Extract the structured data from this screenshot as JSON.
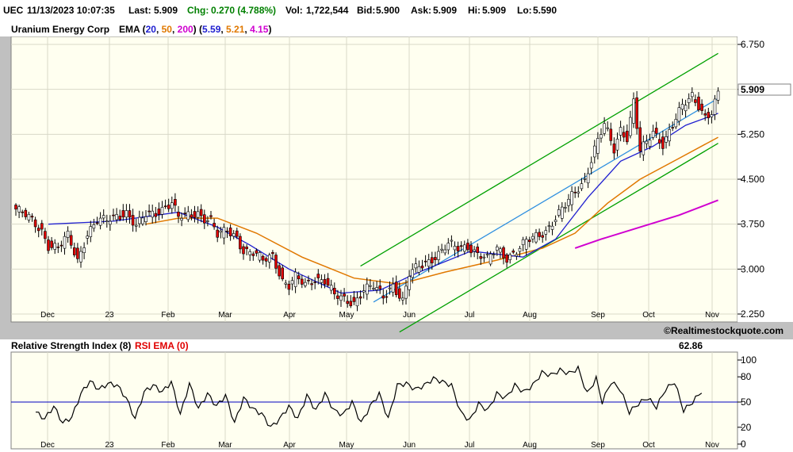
{
  "quote": {
    "symbol": "UEC",
    "datetime": "11/13/2023 10:07:35",
    "last_label": "Last:",
    "last": "5.909",
    "chg_label": "Chg:",
    "chg": "0.270 (4.788%)",
    "vol_label": "Vol:",
    "vol": "1,722,544",
    "bid_label": "Bid:",
    "bid": "5.900",
    "ask_label": "Ask:",
    "ask": "5.909",
    "hi_label": "Hi:",
    "hi": "5.909",
    "lo_label": "Lo:",
    "lo": "5.590"
  },
  "price_panel": {
    "company": "Uranium Energy Corp",
    "ema_label": "EMA",
    "ema_periods": [
      "20",
      "50",
      "200"
    ],
    "ema_values": [
      "5.59",
      "5.21",
      "4.15"
    ],
    "last_price_tag": "5.909"
  },
  "colors": {
    "background": "#fffff0",
    "frame": "#c0c0c0",
    "ema20": "#2020d0",
    "ema50": "#e07800",
    "ema200": "#d000d0",
    "channel": "#00a000",
    "trendline": "#3090e0",
    "candle_up": "#ffffff",
    "candle_down": "#e00000",
    "rsi_line": "#000000",
    "rsi_midline": "#0000c0",
    "rsi_ema_label": "#e00000"
  },
  "watermark": "©Realtimestockquote.com",
  "rsi_panel": {
    "title": "Relative Strength Index (8)",
    "ema_label": "RSI EMA (0)",
    "current_value": "62.86",
    "yticks": [
      "100",
      "80",
      "50",
      "20",
      "0"
    ]
  },
  "chart_data": [
    {
      "type": "candlestick",
      "yticks": [
        "6.750",
        "6.000",
        "5.250",
        "4.500",
        "3.750",
        "3.000",
        "2.250"
      ],
      "ylim": [
        2.25,
        6.75
      ],
      "x_labels": [
        "Dec",
        "23",
        "Feb",
        "Mar",
        "Apr",
        "May",
        "Jun",
        "Jul",
        "Aug",
        "Sep",
        "Oct",
        "Nov"
      ],
      "close_anchors": [
        [
          0,
          4.0
        ],
        [
          4,
          3.85
        ],
        [
          8,
          3.65
        ],
        [
          10,
          3.4
        ],
        [
          13,
          3.35
        ],
        [
          16,
          3.55
        ],
        [
          19,
          3.15
        ],
        [
          22,
          3.6
        ],
        [
          25,
          3.8
        ],
        [
          28,
          3.8
        ],
        [
          31,
          3.9
        ],
        [
          34,
          3.95
        ],
        [
          37,
          3.7
        ],
        [
          40,
          3.9
        ],
        [
          43,
          3.95
        ],
        [
          46,
          4.05
        ],
        [
          48,
          4.1
        ],
        [
          50,
          3.85
        ],
        [
          53,
          3.9
        ],
        [
          56,
          3.95
        ],
        [
          58,
          3.85
        ],
        [
          60,
          3.8
        ],
        [
          62,
          3.55
        ],
        [
          65,
          3.65
        ],
        [
          68,
          3.55
        ],
        [
          70,
          3.3
        ],
        [
          73,
          3.25
        ],
        [
          76,
          3.15
        ],
        [
          79,
          3.25
        ],
        [
          82,
          2.8
        ],
        [
          84,
          2.7
        ],
        [
          86,
          2.85
        ],
        [
          89,
          2.75
        ],
        [
          92,
          2.85
        ],
        [
          95,
          2.8
        ],
        [
          98,
          2.55
        ],
        [
          101,
          2.5
        ],
        [
          104,
          2.45
        ],
        [
          107,
          2.65
        ],
        [
          110,
          2.7
        ],
        [
          113,
          2.55
        ],
        [
          116,
          2.75
        ],
        [
          119,
          2.45
        ],
        [
          121,
          2.9
        ],
        [
          124,
          3.05
        ],
        [
          127,
          3.15
        ],
        [
          130,
          3.25
        ],
        [
          133,
          3.4
        ],
        [
          136,
          3.35
        ],
        [
          139,
          3.4
        ],
        [
          142,
          3.25
        ],
        [
          145,
          3.15
        ],
        [
          148,
          3.35
        ],
        [
          151,
          3.2
        ],
        [
          154,
          3.3
        ],
        [
          157,
          3.45
        ],
        [
          160,
          3.55
        ],
        [
          163,
          3.65
        ],
        [
          166,
          3.85
        ],
        [
          169,
          4.05
        ],
        [
          172,
          4.3
        ],
        [
          175,
          4.5
        ],
        [
          178,
          5.0
        ],
        [
          181,
          5.4
        ],
        [
          184,
          5.0
        ],
        [
          186,
          5.35
        ],
        [
          188,
          5.2
        ],
        [
          190,
          5.8
        ],
        [
          192,
          4.95
        ],
        [
          194,
          5.1
        ],
        [
          196,
          5.3
        ],
        [
          199,
          5.1
        ],
        [
          202,
          5.4
        ],
        [
          205,
          5.7
        ],
        [
          208,
          5.9
        ],
        [
          210,
          5.75
        ],
        [
          212,
          5.55
        ],
        [
          214,
          5.6
        ],
        [
          216,
          5.909
        ]
      ],
      "ema20": [
        [
          10,
          3.75
        ],
        [
          30,
          3.8
        ],
        [
          50,
          3.95
        ],
        [
          62,
          3.7
        ],
        [
          72,
          3.4
        ],
        [
          84,
          3.0
        ],
        [
          100,
          2.6
        ],
        [
          112,
          2.65
        ],
        [
          124,
          2.95
        ],
        [
          140,
          3.3
        ],
        [
          156,
          3.2
        ],
        [
          166,
          3.5
        ],
        [
          176,
          4.2
        ],
        [
          186,
          4.8
        ],
        [
          196,
          5.05
        ],
        [
          206,
          5.4
        ],
        [
          216,
          5.6
        ]
      ],
      "ema50": [
        [
          40,
          3.75
        ],
        [
          50,
          3.85
        ],
        [
          62,
          3.85
        ],
        [
          74,
          3.6
        ],
        [
          88,
          3.2
        ],
        [
          104,
          2.85
        ],
        [
          118,
          2.75
        ],
        [
          132,
          2.95
        ],
        [
          148,
          3.15
        ],
        [
          162,
          3.35
        ],
        [
          172,
          3.6
        ],
        [
          182,
          4.1
        ],
        [
          192,
          4.5
        ],
        [
          204,
          4.85
        ],
        [
          216,
          5.2
        ]
      ],
      "ema200": [
        [
          172,
          3.35
        ],
        [
          180,
          3.5
        ],
        [
          192,
          3.7
        ],
        [
          204,
          3.9
        ],
        [
          216,
          4.15
        ]
      ],
      "channel_upper": [
        [
          106,
          3.05
        ],
        [
          216,
          6.6
        ]
      ],
      "channel_lower": [
        [
          118,
          1.95
        ],
        [
          216,
          5.1
        ]
      ],
      "trendline": [
        [
          110,
          2.45
        ],
        [
          216,
          5.85
        ]
      ]
    },
    {
      "type": "line",
      "ylabel": "Relative Strength Index (8)",
      "ylim": [
        0,
        100
      ],
      "midline": 50,
      "anchors": [
        [
          0,
          38
        ],
        [
          3,
          30
        ],
        [
          6,
          45
        ],
        [
          9,
          25
        ],
        [
          12,
          32
        ],
        [
          15,
          60
        ],
        [
          18,
          75
        ],
        [
          21,
          65
        ],
        [
          24,
          72
        ],
        [
          27,
          70
        ],
        [
          30,
          55
        ],
        [
          33,
          30
        ],
        [
          36,
          62
        ],
        [
          39,
          70
        ],
        [
          42,
          62
        ],
        [
          45,
          74
        ],
        [
          48,
          35
        ],
        [
          51,
          72
        ],
        [
          54,
          42
        ],
        [
          57,
          60
        ],
        [
          60,
          45
        ],
        [
          63,
          58
        ],
        [
          66,
          25
        ],
        [
          69,
          55
        ],
        [
          72,
          42
        ],
        [
          75,
          36
        ],
        [
          78,
          20
        ],
        [
          81,
          30
        ],
        [
          84,
          45
        ],
        [
          87,
          30
        ],
        [
          90,
          58
        ],
        [
          93,
          40
        ],
        [
          96,
          60
        ],
        [
          99,
          40
        ],
        [
          102,
          35
        ],
        [
          105,
          50
        ],
        [
          108,
          25
        ],
        [
          111,
          45
        ],
        [
          114,
          60
        ],
        [
          117,
          30
        ],
        [
          120,
          70
        ],
        [
          123,
          72
        ],
        [
          126,
          65
        ],
        [
          129,
          70
        ],
        [
          132,
          78
        ],
        [
          135,
          74
        ],
        [
          138,
          70
        ],
        [
          141,
          38
        ],
        [
          144,
          28
        ],
        [
          147,
          48
        ],
        [
          150,
          40
        ],
        [
          153,
          60
        ],
        [
          156,
          55
        ],
        [
          159,
          70
        ],
        [
          162,
          62
        ],
        [
          165,
          70
        ],
        [
          168,
          85
        ],
        [
          171,
          82
        ],
        [
          174,
          88
        ],
        [
          177,
          84
        ],
        [
          180,
          90
        ],
        [
          183,
          60
        ],
        [
          186,
          78
        ],
        [
          188,
          50
        ],
        [
          191,
          74
        ],
        [
          194,
          65
        ],
        [
          197,
          38
        ],
        [
          200,
          48
        ],
        [
          203,
          55
        ],
        [
          206,
          44
        ],
        [
          209,
          65
        ],
        [
          212,
          74
        ],
        [
          215,
          40
        ],
        [
          218,
          50
        ],
        [
          221,
          62.86
        ]
      ]
    }
  ]
}
